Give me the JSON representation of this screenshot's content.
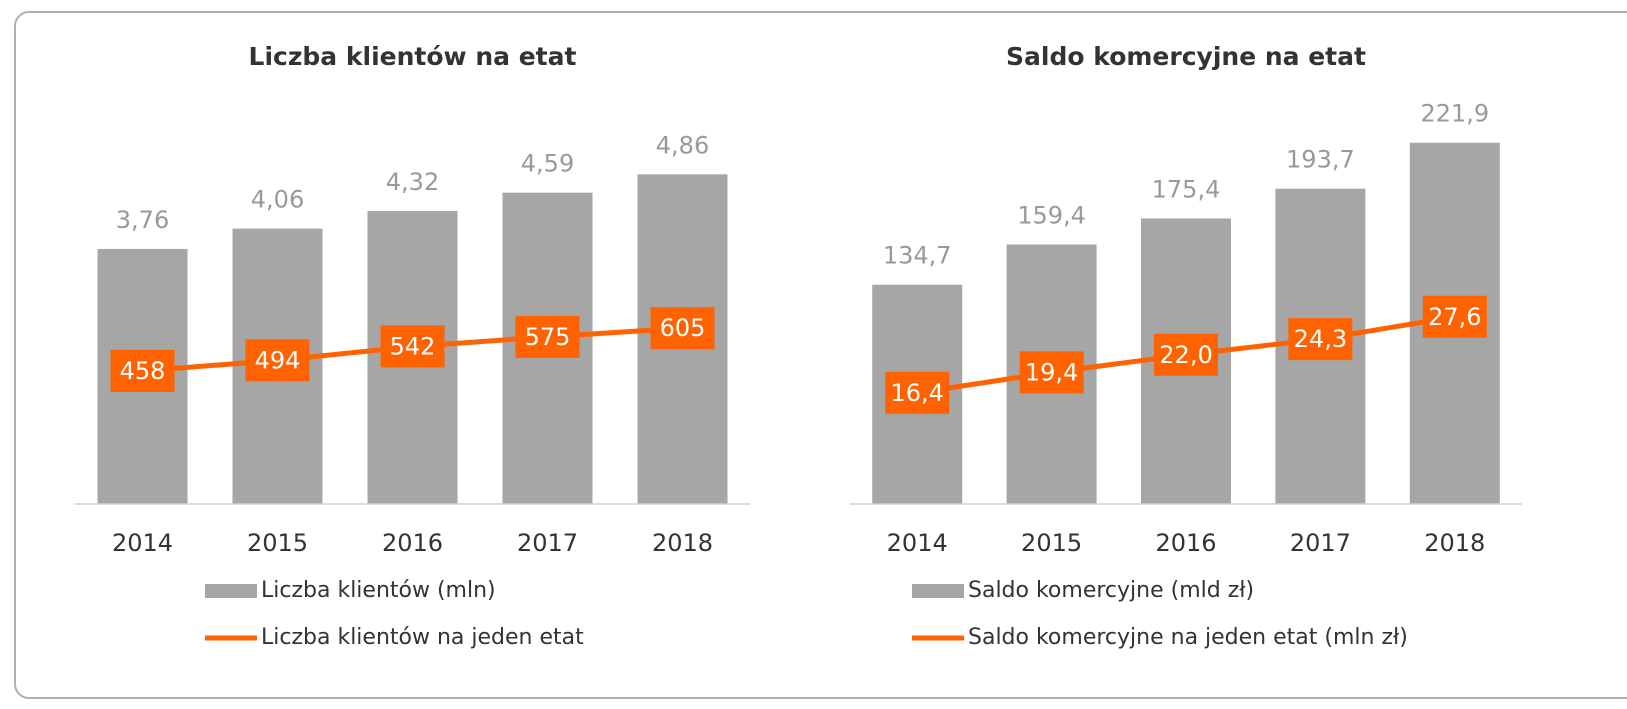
{
  "chart_data": [
    {
      "type": "bar",
      "title": "Liczba klientów na etat",
      "categories": [
        "2014",
        "2015",
        "2016",
        "2017",
        "2018"
      ],
      "ylim": [
        0,
        6
      ],
      "y2lim": [
        0,
        1400
      ],
      "series": [
        {
          "name": "Liczba klientów (mln)",
          "type": "bar",
          "color": "#a6a6a6",
          "values": [
            3.76,
            4.06,
            4.32,
            4.59,
            4.86
          ],
          "value_labels": [
            "3,76",
            "4,06",
            "4,32",
            "4,59",
            "4,86"
          ]
        },
        {
          "name": "Liczba klientów na jeden etat",
          "type": "line",
          "axis": "y2",
          "color": "#ff6200",
          "values": [
            458,
            494,
            542,
            575,
            605
          ]
        }
      ]
    },
    {
      "type": "bar",
      "title": "Saldo komercyjne na etat",
      "categories": [
        "2014",
        "2015",
        "2016",
        "2017",
        "2018"
      ],
      "ylim": [
        0,
        250
      ],
      "y2lim": [
        0,
        60
      ],
      "series": [
        {
          "name": "Saldo komercyjne (mld zł)",
          "type": "bar",
          "color": "#a6a6a6",
          "values": [
            134.7,
            159.4,
            175.4,
            193.7,
            221.9
          ],
          "value_labels": [
            "134,7",
            "159,4",
            "175,4",
            "193,7",
            "221,9"
          ]
        },
        {
          "name": "Saldo komercyjne na jeden etat (mln zł)",
          "type": "line",
          "axis": "y2",
          "color": "#ff6200",
          "values": [
            16.4,
            19.4,
            22.0,
            24.3,
            27.6
          ],
          "value_labels": [
            "16,4",
            "19,4",
            "22,0",
            "24,3",
            "27,6"
          ]
        }
      ]
    }
  ]
}
